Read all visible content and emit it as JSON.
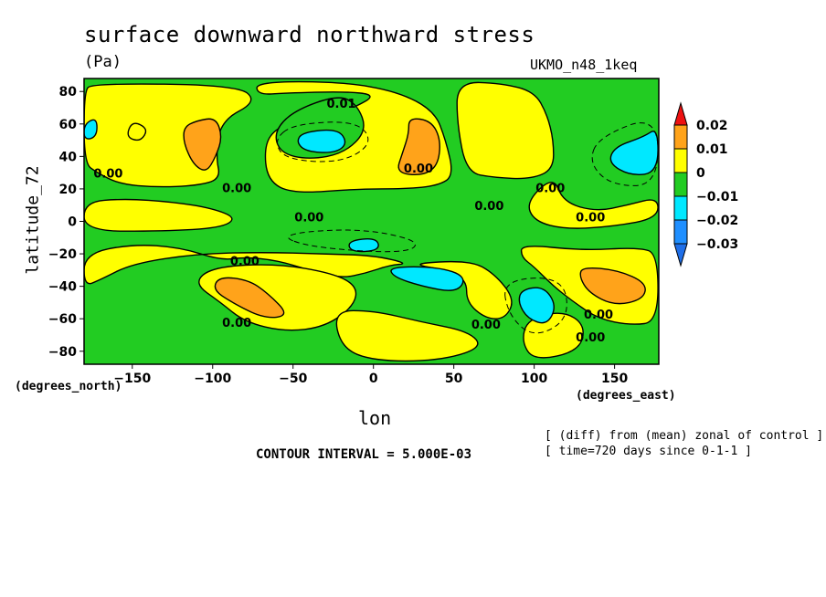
{
  "title": "surface downward northward stress",
  "units": "(Pa)",
  "model": "UKMO_n48_1keq",
  "notes": [
    "[ (diff) from (mean) zonal of control ]",
    "[ time=720 days since 0-1-1 ]"
  ],
  "contour_interval": "CONTOUR INTERVAL = 5.000E-03",
  "colors": {
    "le_-0.03": "#1f6fe8",
    "-0.03_-0.02": "#1f8fff",
    "-0.02_-0.01": "#00e8ff",
    "-0.01_0": "#22cc22",
    "0_0.01": "#ffff00",
    "0.01_0.02": "#ffa31a",
    "ge_0.02": "#ee1111"
  },
  "chart_data": {
    "type": "heatmap",
    "subtype": "filled contour map",
    "xlabel": "lon",
    "ylabel": "latitude_72",
    "x_unit": "(degrees_east)",
    "y_unit": "(degrees_north)",
    "xlim": [
      -180,
      177.5
    ],
    "ylim": [
      -88,
      88
    ],
    "x_ticks": [
      "-150",
      "-100",
      "-50",
      "0",
      "50",
      "100",
      "150"
    ],
    "y_ticks": [
      "80",
      "60",
      "40",
      "20",
      "0",
      "-20",
      "-40",
      "-60",
      "-80"
    ],
    "colorbar_labels": [
      "0.02",
      "0.01",
      "0",
      "−0.01",
      "−0.02",
      "−0.03"
    ],
    "levels": [
      -0.03,
      -0.02,
      -0.01,
      0,
      0.01,
      0.02
    ],
    "contour_labels": [
      "0.00",
      "0.01",
      "0.00",
      "0.00",
      "0.00",
      "0.00",
      "0.00",
      "0.00",
      "0.00",
      "0.00",
      "0.00",
      "0.00",
      "0.00"
    ],
    "grid": false,
    "legend": "right colorbar",
    "features": [
      {
        "level": 0.01,
        "lon": -103,
        "lat": 50
      },
      {
        "level": 0.01,
        "lon": 27,
        "lat": 45
      },
      {
        "level": 0.01,
        "lon": -68,
        "lat": -47
      },
      {
        "level": 0.01,
        "lon": 150,
        "lat": -42
      },
      {
        "level": -0.01,
        "lon": -40,
        "lat": 48
      },
      {
        "level": -0.01,
        "lon": 165,
        "lat": 42
      },
      {
        "level": -0.01,
        "lon": 43,
        "lat": -35
      },
      {
        "level": -0.01,
        "lon": 103,
        "lat": -52
      },
      {
        "level": -0.01,
        "lon": -5,
        "lat": -14
      }
    ]
  }
}
